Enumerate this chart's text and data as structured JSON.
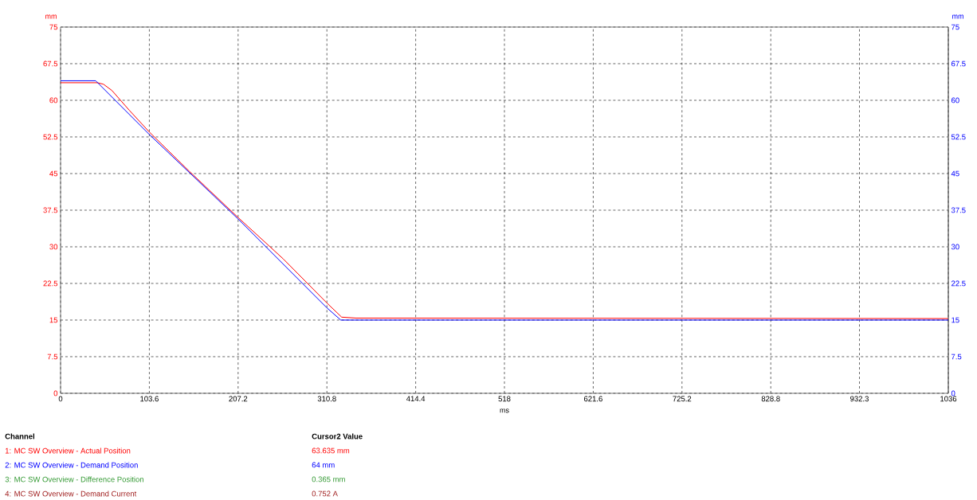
{
  "chart_data": {
    "type": "line",
    "xlabel": "ms",
    "ylabel": "mm",
    "y2label": "mm",
    "xlim": [
      0,
      1036
    ],
    "xticks": [
      0,
      103.6,
      207.2,
      310.8,
      414.4,
      518,
      621.6,
      725.2,
      828.8,
      932.3,
      1036
    ],
    "ylim": [
      0,
      75
    ],
    "yticks": [
      0,
      7.5,
      15,
      22.5,
      30,
      37.5,
      45,
      52.5,
      60,
      67.5,
      75
    ],
    "y2lim": [
      0,
      75
    ],
    "y2ticks": [
      0,
      7.5,
      15,
      22.5,
      30,
      37.5,
      45,
      52.5,
      60,
      67.5,
      75
    ],
    "grid": true,
    "marker": "none",
    "line_style": "solid",
    "series": [
      {
        "color": "#ff0000",
        "x": [
          0,
          43,
          50,
          60,
          80,
          103.6,
          150,
          207.2,
          260,
          310.8,
          328,
          345,
          1036
        ],
        "values": [
          63.6,
          63.6,
          63.3,
          62,
          58,
          53.5,
          45.5,
          36,
          27.5,
          18.5,
          15.6,
          15.4,
          15.3
        ]
      },
      {
        "color": "#0000ff",
        "axis": "y2",
        "x": [
          0,
          41,
          103.6,
          207.2,
          310.8,
          327,
          1036
        ],
        "values": [
          64,
          64,
          53,
          35.7,
          17.5,
          15,
          15
        ]
      }
    ],
    "annotations": [
      "Channel",
      "Cursor2 Value",
      "1: MC SW Overview - Actual Position",
      "63.635 mm",
      "2: MC SW Overview - Demand Position",
      "64 mm",
      "3: MC SW Overview - Difference Position",
      "0.365 mm",
      "4: MC SW Overview - Demand Current",
      "0.752 A"
    ]
  }
}
